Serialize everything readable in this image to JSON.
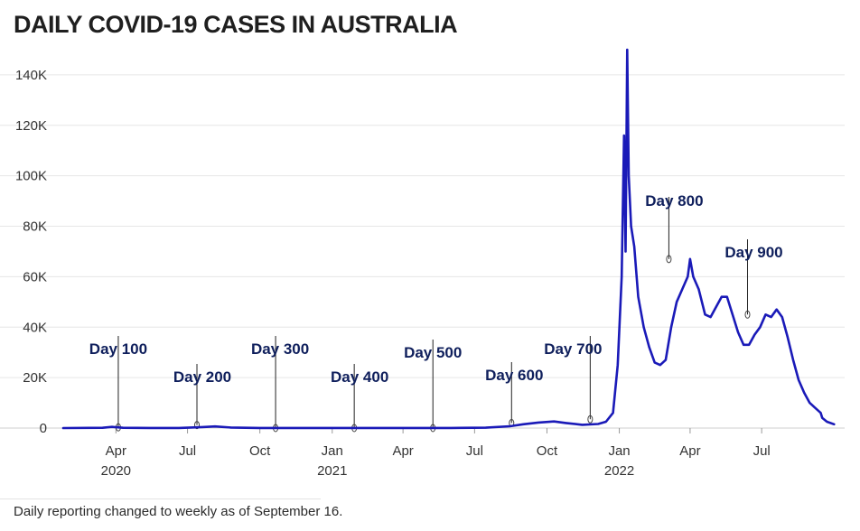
{
  "chart_data": {
    "type": "line",
    "title": "DAILY COVID-19 CASES IN AUSTRALIA",
    "xlabel": "",
    "ylabel": "",
    "x_range": [
      "2020-01-25",
      "2022-10-03"
    ],
    "ylim": [
      0,
      150000
    ],
    "y_ticks": [
      0,
      20000,
      40000,
      60000,
      80000,
      100000,
      120000,
      140000
    ],
    "y_tick_labels": [
      "0",
      "20K",
      "40K",
      "60K",
      "80K",
      "100K",
      "120K",
      "140K"
    ],
    "x_ticks": [
      {
        "date": "2020-04-01",
        "label": "Apr",
        "year": "2020"
      },
      {
        "date": "2020-07-01",
        "label": "Jul",
        "year": ""
      },
      {
        "date": "2020-10-01",
        "label": "Oct",
        "year": ""
      },
      {
        "date": "2021-01-01",
        "label": "Jan",
        "year": "2021"
      },
      {
        "date": "2021-04-01",
        "label": "Apr",
        "year": ""
      },
      {
        "date": "2021-07-01",
        "label": "Jul",
        "year": ""
      },
      {
        "date": "2021-10-01",
        "label": "Oct",
        "year": ""
      },
      {
        "date": "2022-01-01",
        "label": "Jan",
        "year": "2022"
      },
      {
        "date": "2022-04-01",
        "label": "Apr",
        "year": ""
      },
      {
        "date": "2022-07-01",
        "label": "Jul",
        "year": ""
      }
    ],
    "grid": true,
    "series": [
      {
        "name": "Daily cases",
        "color": "#1a1ab8",
        "points": [
          [
            "2020-01-25",
            0
          ],
          [
            "2020-03-15",
            100
          ],
          [
            "2020-03-27",
            450
          ],
          [
            "2020-04-10",
            100
          ],
          [
            "2020-05-15",
            20
          ],
          [
            "2020-06-20",
            50
          ],
          [
            "2020-07-20",
            400
          ],
          [
            "2020-08-05",
            650
          ],
          [
            "2020-08-25",
            200
          ],
          [
            "2020-10-01",
            20
          ],
          [
            "2021-01-01",
            20
          ],
          [
            "2021-06-01",
            20
          ],
          [
            "2021-07-15",
            150
          ],
          [
            "2021-08-15",
            700
          ],
          [
            "2021-09-01",
            1500
          ],
          [
            "2021-09-20",
            2200
          ],
          [
            "2021-10-10",
            2600
          ],
          [
            "2021-10-25",
            2000
          ],
          [
            "2021-11-15",
            1300
          ],
          [
            "2021-12-05",
            1600
          ],
          [
            "2021-12-15",
            2500
          ],
          [
            "2021-12-24",
            6000
          ],
          [
            "2021-12-30",
            25000
          ],
          [
            "2022-01-04",
            60000
          ],
          [
            "2022-01-07",
            116000
          ],
          [
            "2022-01-09",
            70000
          ],
          [
            "2022-01-11",
            150000
          ],
          [
            "2022-01-13",
            100000
          ],
          [
            "2022-01-16",
            80000
          ],
          [
            "2022-01-20",
            72000
          ],
          [
            "2022-01-25",
            52000
          ],
          [
            "2022-02-01",
            40000
          ],
          [
            "2022-02-08",
            32000
          ],
          [
            "2022-02-15",
            26000
          ],
          [
            "2022-02-22",
            25000
          ],
          [
            "2022-03-01",
            27000
          ],
          [
            "2022-03-08",
            40000
          ],
          [
            "2022-03-15",
            50000
          ],
          [
            "2022-03-22",
            55000
          ],
          [
            "2022-03-29",
            60000
          ],
          [
            "2022-04-01",
            67000
          ],
          [
            "2022-04-05",
            60000
          ],
          [
            "2022-04-12",
            55000
          ],
          [
            "2022-04-20",
            45000
          ],
          [
            "2022-04-27",
            44000
          ],
          [
            "2022-05-04",
            48000
          ],
          [
            "2022-05-11",
            52000
          ],
          [
            "2022-05-18",
            52000
          ],
          [
            "2022-05-25",
            45000
          ],
          [
            "2022-06-01",
            38000
          ],
          [
            "2022-06-08",
            33000
          ],
          [
            "2022-06-15",
            33000
          ],
          [
            "2022-06-22",
            37000
          ],
          [
            "2022-06-29",
            40000
          ],
          [
            "2022-07-06",
            45000
          ],
          [
            "2022-07-13",
            44000
          ],
          [
            "2022-07-20",
            47000
          ],
          [
            "2022-07-27",
            44000
          ],
          [
            "2022-08-03",
            36000
          ],
          [
            "2022-08-10",
            27000
          ],
          [
            "2022-08-17",
            19000
          ],
          [
            "2022-08-24",
            14000
          ],
          [
            "2022-08-31",
            10000
          ],
          [
            "2022-09-07",
            8000
          ],
          [
            "2022-09-14",
            6000
          ],
          [
            "2022-09-16",
            4000
          ],
          [
            "2022-09-22",
            2500
          ],
          [
            "2022-10-01",
            1500
          ]
        ]
      }
    ],
    "annotations": [
      {
        "label": "Day 100",
        "date": "2020-04-04",
        "value": 300
      },
      {
        "label": "Day 200",
        "date": "2020-07-13",
        "value": 1200
      },
      {
        "label": "Day 300",
        "date": "2020-10-21",
        "value": 20
      },
      {
        "label": "Day 400",
        "date": "2021-01-29",
        "value": 20
      },
      {
        "label": "Day 500",
        "date": "2021-05-09",
        "value": 20
      },
      {
        "label": "Day 600",
        "date": "2021-08-17",
        "value": 2000
      },
      {
        "label": "Day 700",
        "date": "2021-11-25",
        "value": 3500
      },
      {
        "label": "Day 800",
        "date": "2022-03-05",
        "value": 67000
      },
      {
        "label": "Day 900",
        "date": "2022-06-13",
        "value": 45000
      }
    ]
  },
  "footnote": "Daily reporting changed to weekly as of September 16."
}
